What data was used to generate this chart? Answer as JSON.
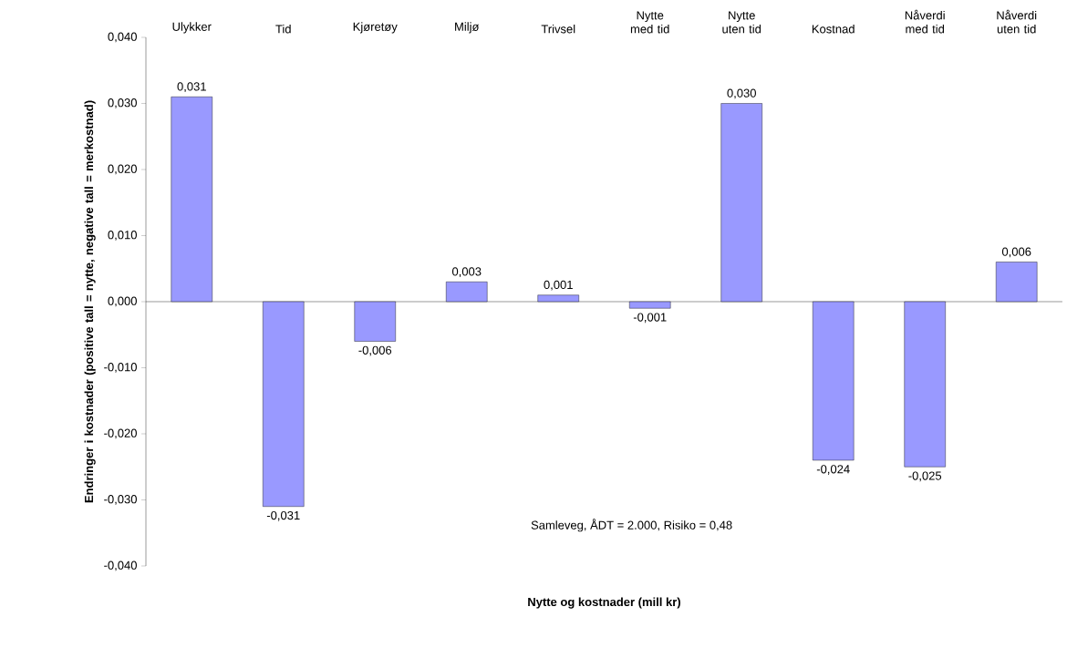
{
  "chart_data": {
    "type": "bar",
    "xlabel": "Nytte og kostnader (mill kr)",
    "ylabel": "Endringer i kostnader (positive tall = nytte, negative tall = merkostnad)",
    "categories": [
      "Ulykker",
      "Tid",
      "Kjøretøy",
      "Miljø",
      "Trivsel",
      "Nytte med tid",
      "Nytte uten tid",
      "Kostnad",
      "Nåverdi med tid",
      "Nåverdi uten tid"
    ],
    "values": [
      0.031,
      -0.031,
      -0.006,
      0.003,
      0.001,
      -0.001,
      0.03,
      -0.024,
      -0.025,
      0.006
    ],
    "color": "#9999ff",
    "value_labels": [
      "0,031",
      "-0,031",
      "-0,006",
      "0,003",
      "0,001",
      "-0,001",
      "0,030",
      "-0,024",
      "-0,025",
      "0,006"
    ],
    "ylim": [
      -0.04,
      0.04
    ],
    "yticks": [
      {
        "value": -0.04,
        "label": "-0,040"
      },
      {
        "value": -0.03,
        "label": "-0,030"
      },
      {
        "value": -0.02,
        "label": "-0,020"
      },
      {
        "value": -0.01,
        "label": "-0,010"
      },
      {
        "value": 0,
        "label": "0,000"
      },
      {
        "value": 0.01,
        "label": "0,010"
      },
      {
        "value": 0.02,
        "label": "0,020"
      },
      {
        "value": 0.03,
        "label": "0,030"
      },
      {
        "value": 0.04,
        "label": "0,040"
      }
    ],
    "annotations": [
      "Samleveg, ÅDT = 2.000, Risiko = 0,48"
    ]
  }
}
